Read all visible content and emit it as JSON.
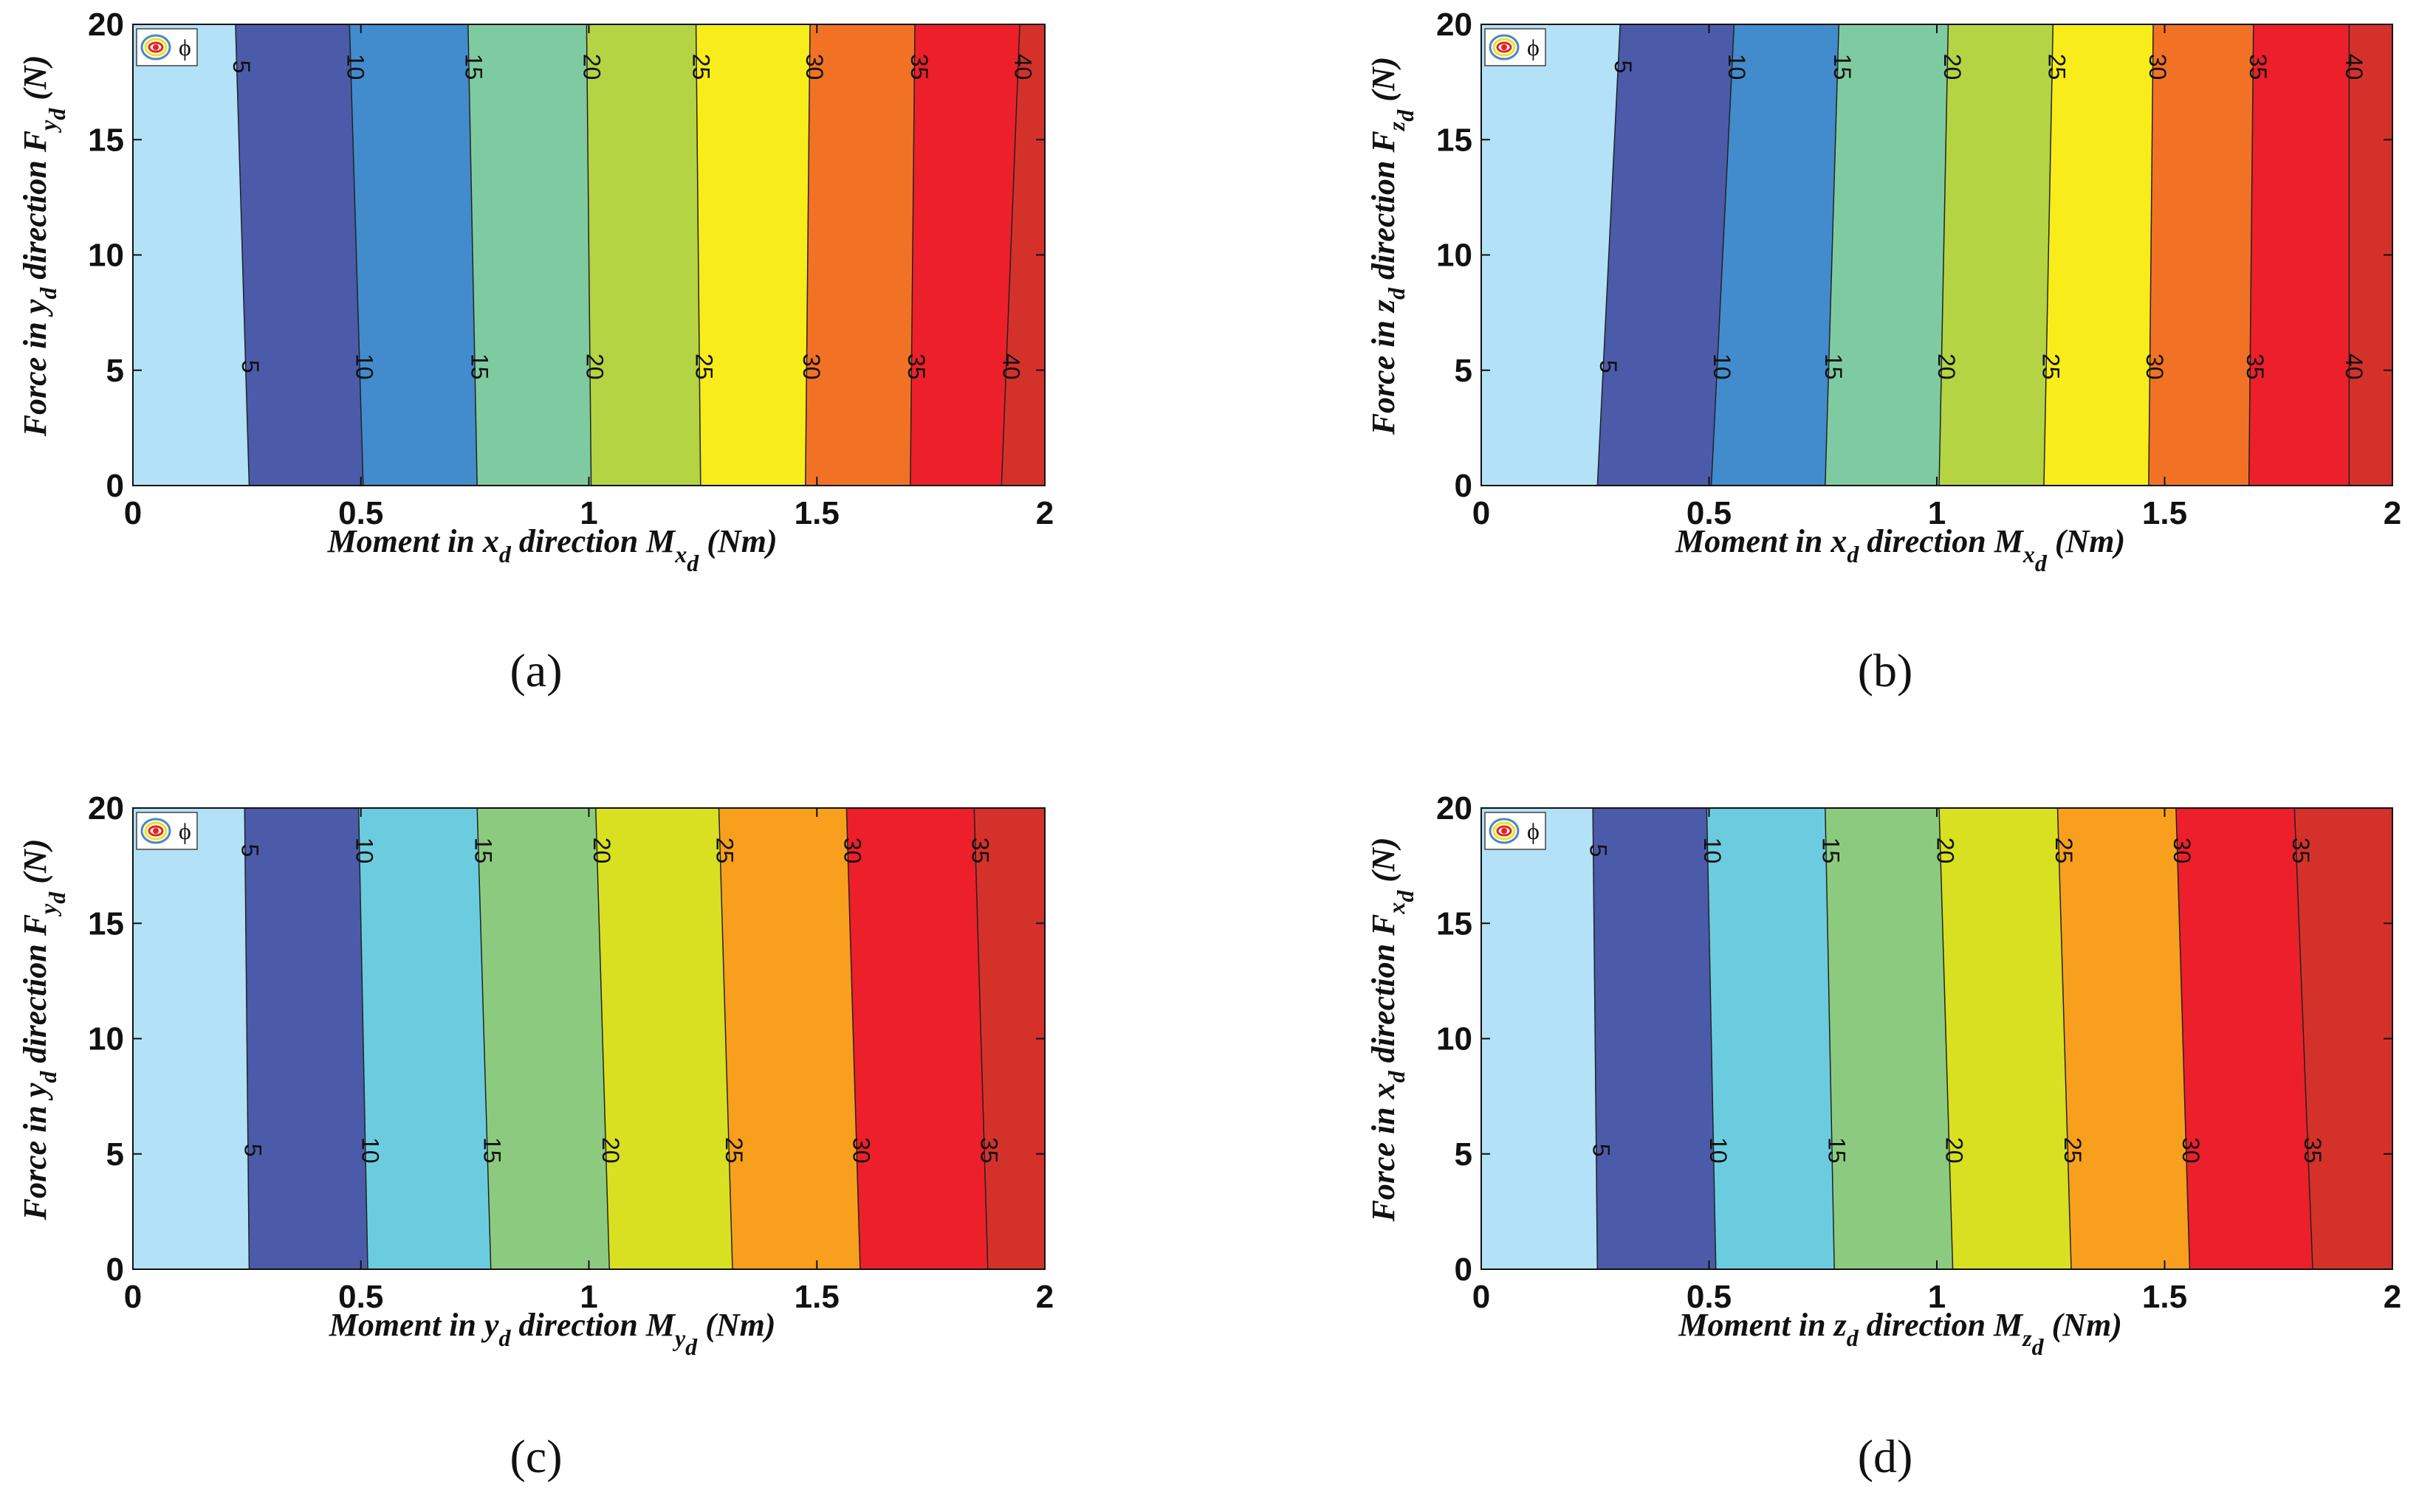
{
  "chart_data": [
    {
      "id": "a",
      "type": "contour",
      "caption": "(a)",
      "legend": "ϕ",
      "x": {
        "min": 0,
        "max": 2,
        "ticks": [
          "0",
          "0.5",
          "1",
          "1.5",
          "2"
        ],
        "tick_values": [
          0,
          0.5,
          1,
          1.5,
          2
        ]
      },
      "y": {
        "min": 0,
        "max": 20,
        "ticks": [
          "0",
          "5",
          "10",
          "15",
          "20"
        ],
        "tick_values": [
          0,
          5,
          10,
          15,
          20
        ]
      },
      "xlabel": {
        "pre": "Moment in x",
        "pre_sub": "d",
        "mid": " direction M",
        "mid_sub": "x",
        "mid_subsub": "d",
        "post": " (Nm)"
      },
      "ylabel": {
        "pre": "Force in y",
        "pre_sub": "d",
        "mid": " direction F",
        "mid_sub": "y",
        "mid_subsub": "d",
        "post": " (N)"
      },
      "levels": [
        5,
        10,
        15,
        20,
        25,
        30,
        35,
        40
      ],
      "level_labels": [
        "5",
        "10",
        "15",
        "20",
        "25",
        "30",
        "35",
        "40"
      ],
      "contour_x_at_y0": [
        0.255,
        0.505,
        0.755,
        1.005,
        1.245,
        1.475,
        1.705,
        1.905
      ],
      "contour_x_at_y20": [
        0.225,
        0.475,
        0.735,
        0.995,
        1.235,
        1.485,
        1.715,
        1.945
      ],
      "colors": [
        "#b3e1f7",
        "#4b5ba9",
        "#428bcd",
        "#7fcba1",
        "#b4d443",
        "#f8ec1a",
        "#f27225",
        "#ed1f2a",
        "#d5312b"
      ]
    },
    {
      "id": "b",
      "type": "contour",
      "caption": "(b)",
      "legend": "ϕ",
      "x": {
        "min": 0,
        "max": 2,
        "ticks": [
          "0",
          "0.5",
          "1",
          "1.5",
          "2"
        ],
        "tick_values": [
          0,
          0.5,
          1,
          1.5,
          2
        ]
      },
      "y": {
        "min": 0,
        "max": 20,
        "ticks": [
          "0",
          "5",
          "10",
          "15",
          "20"
        ],
        "tick_values": [
          0,
          5,
          10,
          15,
          20
        ]
      },
      "xlabel": {
        "pre": "Moment in x",
        "pre_sub": "d",
        "mid": " direction M",
        "mid_sub": "x",
        "mid_subsub": "d",
        "post": " (Nm)"
      },
      "ylabel": {
        "pre": "Force in z",
        "pre_sub": "d",
        "mid": " direction F",
        "mid_sub": "z",
        "mid_subsub": "d",
        "post": " (N)"
      },
      "levels": [
        5,
        10,
        15,
        20,
        25,
        30,
        35,
        40
      ],
      "level_labels": [
        "5",
        "10",
        "15",
        "20",
        "25",
        "30",
        "35",
        "40"
      ],
      "contour_x_at_y0": [
        0.255,
        0.505,
        0.755,
        1.005,
        1.235,
        1.465,
        1.685,
        1.905
      ],
      "contour_x_at_y20": [
        0.305,
        0.555,
        0.785,
        1.025,
        1.255,
        1.475,
        1.695,
        1.905
      ],
      "colors": [
        "#b3e1f7",
        "#4b5ba9",
        "#428bcd",
        "#7fcba1",
        "#b4d443",
        "#f8ec1a",
        "#f27225",
        "#ed1f2a",
        "#d5312b"
      ]
    },
    {
      "id": "c",
      "type": "contour",
      "caption": "(c)",
      "legend": "ϕ",
      "x": {
        "min": 0,
        "max": 2,
        "ticks": [
          "0",
          "0.5",
          "1",
          "1.5",
          "2"
        ],
        "tick_values": [
          0,
          0.5,
          1,
          1.5,
          2
        ]
      },
      "y": {
        "min": 0,
        "max": 20,
        "ticks": [
          "0",
          "5",
          "10",
          "15",
          "20"
        ],
        "tick_values": [
          0,
          5,
          10,
          15,
          20
        ]
      },
      "xlabel": {
        "pre": "Moment in y",
        "pre_sub": "d",
        "mid": " direction M",
        "mid_sub": "y",
        "mid_subsub": "d",
        "post": " (Nm)"
      },
      "ylabel": {
        "pre": "Force in y",
        "pre_sub": "d",
        "mid": " direction F",
        "mid_sub": "y",
        "mid_subsub": "d",
        "post": " (N)"
      },
      "levels": [
        5,
        10,
        15,
        20,
        25,
        30,
        35
      ],
      "level_labels": [
        "5",
        "10",
        "15",
        "20",
        "25",
        "30",
        "35"
      ],
      "contour_x_at_y0": [
        0.255,
        0.515,
        0.785,
        1.045,
        1.315,
        1.595,
        1.875
      ],
      "contour_x_at_y20": [
        0.245,
        0.495,
        0.755,
        1.015,
        1.285,
        1.565,
        1.845
      ],
      "colors": [
        "#b3e1f7",
        "#4b5ba9",
        "#6cccdf",
        "#8ccb7f",
        "#d9e021",
        "#f8a01d",
        "#ed1f2a",
        "#d5312b"
      ]
    },
    {
      "id": "d",
      "type": "contour",
      "caption": "(d)",
      "legend": "ϕ",
      "x": {
        "min": 0,
        "max": 2,
        "ticks": [
          "0",
          "0.5",
          "1",
          "1.5",
          "2"
        ],
        "tick_values": [
          0,
          0.5,
          1,
          1.5,
          2
        ]
      },
      "y": {
        "min": 0,
        "max": 20,
        "ticks": [
          "0",
          "5",
          "10",
          "15",
          "20"
        ],
        "tick_values": [
          0,
          5,
          10,
          15,
          20
        ]
      },
      "xlabel": {
        "pre": "Moment in z",
        "pre_sub": "d",
        "mid": " direction M",
        "mid_sub": "z",
        "mid_subsub": "d",
        "post": " (Nm)"
      },
      "ylabel": {
        "pre": "Force in x",
        "pre_sub": "d",
        "mid": " direction F",
        "mid_sub": "x",
        "mid_subsub": "d",
        "post": " (N)"
      },
      "levels": [
        5,
        10,
        15,
        20,
        25,
        30,
        35
      ],
      "level_labels": [
        "5",
        "10",
        "15",
        "20",
        "25",
        "30",
        "35"
      ],
      "contour_x_at_y0": [
        0.255,
        0.515,
        0.775,
        1.035,
        1.295,
        1.555,
        1.825
      ],
      "contour_x_at_y20": [
        0.245,
        0.495,
        0.755,
        1.005,
        1.265,
        1.525,
        1.785
      ],
      "colors": [
        "#b3e1f7",
        "#4b5ba9",
        "#6cccdf",
        "#8ccb7f",
        "#d9e021",
        "#f8a01d",
        "#ed1f2a",
        "#d5312b"
      ]
    }
  ]
}
